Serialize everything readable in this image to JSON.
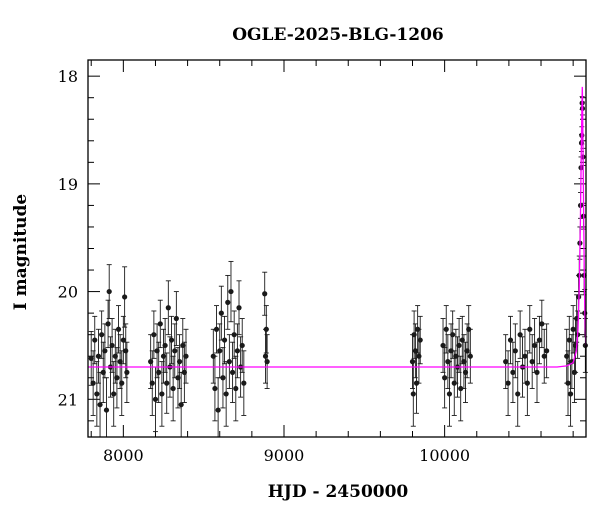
{
  "chart_data": {
    "type": "scatter",
    "title": "OGLE-2025-BLG-1206",
    "xlabel": "HJD - 2450000",
    "ylabel": "I magnitude",
    "xlim": [
      7780,
      10880
    ],
    "ylim": [
      21.35,
      17.85
    ],
    "y_inverted": true,
    "xticks": [
      {
        "value": 8000,
        "label": "8000"
      },
      {
        "value": 9000,
        "label": "9000"
      },
      {
        "value": 10000,
        "label": "10000"
      }
    ],
    "yticks": [
      {
        "value": 18,
        "label": "18"
      },
      {
        "value": 19,
        "label": "19"
      },
      {
        "value": 20,
        "label": "20"
      },
      {
        "value": 21,
        "label": "21"
      }
    ],
    "grid": false,
    "legend": "none",
    "colors": {
      "data": "#1a1a1a",
      "model": "#ff00ff"
    },
    "series": [
      {
        "kind": "observations",
        "points": [
          [
            7800,
            20.62,
            0.25
          ],
          [
            7812,
            20.85,
            0.3
          ],
          [
            7822,
            20.45,
            0.22
          ],
          [
            7835,
            20.95,
            0.3
          ],
          [
            7845,
            20.6,
            0.25
          ],
          [
            7855,
            21.05,
            0.3
          ],
          [
            7865,
            20.4,
            0.22
          ],
          [
            7875,
            20.75,
            0.28
          ],
          [
            7885,
            20.55,
            0.25
          ],
          [
            7895,
            21.1,
            0.3
          ],
          [
            7905,
            20.3,
            0.22
          ],
          [
            7912,
            20.0,
            0.25
          ],
          [
            7920,
            20.7,
            0.28
          ],
          [
            7930,
            20.5,
            0.25
          ],
          [
            7940,
            20.95,
            0.3
          ],
          [
            7950,
            20.6,
            0.25
          ],
          [
            7960,
            20.8,
            0.28
          ],
          [
            7970,
            20.35,
            0.22
          ],
          [
            7980,
            20.65,
            0.25
          ],
          [
            7990,
            20.85,
            0.3
          ],
          [
            8000,
            20.45,
            0.22
          ],
          [
            8008,
            20.05,
            0.28
          ],
          [
            8015,
            20.55,
            0.25
          ],
          [
            8022,
            20.75,
            0.28
          ],
          [
            8170,
            20.65,
            0.25
          ],
          [
            8180,
            20.85,
            0.3
          ],
          [
            8190,
            20.4,
            0.22
          ],
          [
            8200,
            21.0,
            0.3
          ],
          [
            8210,
            20.55,
            0.25
          ],
          [
            8220,
            20.75,
            0.28
          ],
          [
            8230,
            20.3,
            0.22
          ],
          [
            8240,
            20.95,
            0.3
          ],
          [
            8250,
            20.6,
            0.25
          ],
          [
            8260,
            20.5,
            0.25
          ],
          [
            8270,
            20.85,
            0.28
          ],
          [
            8280,
            20.15,
            0.25
          ],
          [
            8290,
            20.7,
            0.28
          ],
          [
            8300,
            20.45,
            0.22
          ],
          [
            8310,
            20.9,
            0.3
          ],
          [
            8320,
            20.55,
            0.25
          ],
          [
            8330,
            20.25,
            0.25
          ],
          [
            8340,
            20.8,
            0.28
          ],
          [
            8350,
            20.65,
            0.25
          ],
          [
            8360,
            21.05,
            0.3
          ],
          [
            8370,
            20.5,
            0.25
          ],
          [
            8380,
            20.75,
            0.28
          ],
          [
            8390,
            20.6,
            0.25
          ],
          [
            8560,
            20.6,
            0.25
          ],
          [
            8570,
            20.9,
            0.3
          ],
          [
            8580,
            20.35,
            0.22
          ],
          [
            8590,
            21.1,
            0.3
          ],
          [
            8600,
            20.55,
            0.25
          ],
          [
            8610,
            20.2,
            0.25
          ],
          [
            8620,
            20.8,
            0.28
          ],
          [
            8630,
            20.45,
            0.22
          ],
          [
            8640,
            20.95,
            0.3
          ],
          [
            8650,
            20.1,
            0.25
          ],
          [
            8660,
            20.65,
            0.25
          ],
          [
            8670,
            20.0,
            0.28
          ],
          [
            8680,
            20.75,
            0.28
          ],
          [
            8690,
            20.4,
            0.22
          ],
          [
            8700,
            20.9,
            0.3
          ],
          [
            8710,
            20.55,
            0.25
          ],
          [
            8720,
            20.15,
            0.25
          ],
          [
            8730,
            20.7,
            0.28
          ],
          [
            8740,
            20.5,
            0.25
          ],
          [
            8750,
            20.85,
            0.3
          ],
          [
            8880,
            20.02,
            0.2
          ],
          [
            8885,
            20.6,
            0.25
          ],
          [
            8890,
            20.35,
            0.22
          ],
          [
            8895,
            20.65,
            0.25
          ],
          [
            9800,
            20.65,
            0.25
          ],
          [
            9805,
            20.95,
            0.3
          ],
          [
            9810,
            20.4,
            0.22
          ],
          [
            9818,
            20.55,
            0.25
          ],
          [
            9825,
            20.85,
            0.28
          ],
          [
            9832,
            20.35,
            0.22
          ],
          [
            9840,
            20.6,
            0.25
          ],
          [
            9848,
            20.45,
            0.22
          ],
          [
            9990,
            20.5,
            0.25
          ],
          [
            10000,
            20.8,
            0.28
          ],
          [
            10010,
            20.35,
            0.22
          ],
          [
            10020,
            20.65,
            0.25
          ],
          [
            10030,
            20.95,
            0.3
          ],
          [
            10040,
            20.55,
            0.25
          ],
          [
            10050,
            20.4,
            0.22
          ],
          [
            10060,
            20.85,
            0.3
          ],
          [
            10070,
            20.6,
            0.25
          ],
          [
            10080,
            20.7,
            0.28
          ],
          [
            10090,
            20.5,
            0.25
          ],
          [
            10100,
            20.9,
            0.3
          ],
          [
            10110,
            20.45,
            0.22
          ],
          [
            10120,
            20.65,
            0.25
          ],
          [
            10130,
            20.75,
            0.28
          ],
          [
            10140,
            20.55,
            0.25
          ],
          [
            10150,
            20.35,
            0.22
          ],
          [
            10160,
            20.6,
            0.25
          ],
          [
            10380,
            20.65,
            0.25
          ],
          [
            10395,
            20.85,
            0.3
          ],
          [
            10410,
            20.45,
            0.22
          ],
          [
            10425,
            20.75,
            0.28
          ],
          [
            10440,
            20.55,
            0.25
          ],
          [
            10455,
            20.95,
            0.3
          ],
          [
            10470,
            20.4,
            0.22
          ],
          [
            10485,
            20.7,
            0.28
          ],
          [
            10500,
            20.6,
            0.25
          ],
          [
            10515,
            20.85,
            0.3
          ],
          [
            10530,
            20.35,
            0.22
          ],
          [
            10545,
            20.65,
            0.25
          ],
          [
            10560,
            20.5,
            0.25
          ],
          [
            10575,
            20.75,
            0.28
          ],
          [
            10590,
            20.45,
            0.22
          ],
          [
            10605,
            20.3,
            0.22
          ],
          [
            10620,
            20.6,
            0.25
          ],
          [
            10635,
            20.55,
            0.25
          ],
          [
            10760,
            20.6,
            0.25
          ],
          [
            10768,
            20.85,
            0.3
          ],
          [
            10776,
            20.45,
            0.22
          ],
          [
            10784,
            20.95,
            0.3
          ],
          [
            10792,
            20.65,
            0.25
          ],
          [
            10800,
            20.35,
            0.22
          ],
          [
            10808,
            20.75,
            0.28
          ],
          [
            10815,
            20.5,
            0.25
          ],
          [
            10822,
            20.25,
            0.22
          ],
          [
            10828,
            20.4,
            0.22
          ],
          [
            10834,
            20.05,
            0.2
          ],
          [
            10838,
            19.85,
            0.18
          ],
          [
            10842,
            19.55,
            0.15
          ],
          [
            10846,
            19.2,
            0.12
          ],
          [
            10849,
            18.85,
            0.1
          ],
          [
            10852,
            18.62,
            0.08
          ],
          [
            10854,
            18.55,
            0.08
          ],
          [
            10856,
            18.25,
            0.06
          ],
          [
            10858,
            18.3,
            0.06
          ],
          [
            10861,
            18.75,
            0.08
          ],
          [
            10864,
            19.3,
            0.12
          ],
          [
            10868,
            19.85,
            0.18
          ],
          [
            10872,
            20.2,
            0.22
          ],
          [
            10876,
            20.5,
            0.25
          ]
        ]
      },
      {
        "kind": "model",
        "points": [
          [
            7780,
            20.7
          ],
          [
            10700,
            20.7
          ],
          [
            10760,
            20.69
          ],
          [
            10800,
            20.66
          ],
          [
            10820,
            20.55
          ],
          [
            10830,
            20.35
          ],
          [
            10838,
            19.95
          ],
          [
            10845,
            19.35
          ],
          [
            10850,
            18.75
          ],
          [
            10854,
            18.35
          ],
          [
            10857,
            18.1
          ],
          [
            10859,
            18.25
          ],
          [
            10862,
            18.75
          ],
          [
            10866,
            19.4
          ],
          [
            10870,
            19.95
          ],
          [
            10875,
            20.35
          ],
          [
            10880,
            20.5
          ]
        ]
      }
    ]
  }
}
